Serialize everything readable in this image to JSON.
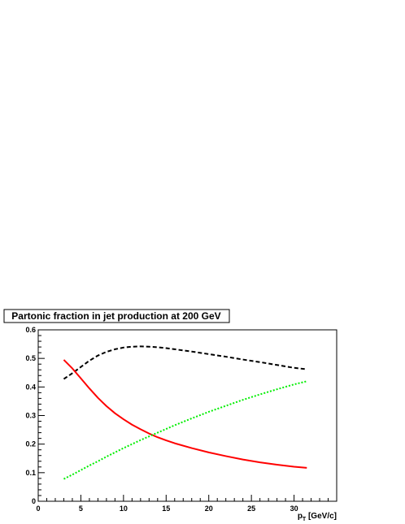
{
  "chart_data": {
    "type": "line",
    "title": "Partonic fraction in jet production at 200 GeV",
    "xlabel": "p",
    "xlabel_sub": "T",
    "xlabel_unit": " [GeV/c]",
    "ylabel": "",
    "xlim": [
      0,
      35
    ],
    "ylim": [
      0,
      0.6
    ],
    "x_major_ticks": [
      0,
      5,
      10,
      15,
      20,
      25,
      30
    ],
    "y_major_ticks": [
      0,
      0.1,
      0.2,
      0.3,
      0.4,
      0.5,
      0.6
    ],
    "x_tick_labels": [
      "0",
      "5",
      "10",
      "15",
      "20",
      "25",
      "30"
    ],
    "y_tick_labels": [
      "0",
      "0.1",
      "0.2",
      "0.3",
      "0.4",
      "0.5",
      "0.6"
    ],
    "grid": false,
    "series": [
      {
        "color": "#000000",
        "dash": "dashed",
        "x": [
          3,
          4,
          5,
          6,
          7,
          8,
          9,
          10,
          11,
          12,
          13,
          14,
          15,
          16,
          18,
          20,
          22,
          24,
          26,
          28,
          30,
          31.5
        ],
        "y": [
          0.428,
          0.448,
          0.47,
          0.492,
          0.51,
          0.523,
          0.532,
          0.538,
          0.541,
          0.542,
          0.541,
          0.539,
          0.536,
          0.532,
          0.524,
          0.515,
          0.506,
          0.496,
          0.487,
          0.477,
          0.467,
          0.462
        ]
      },
      {
        "color": "#ff0000",
        "dash": "solid",
        "x": [
          3,
          4,
          5,
          6,
          7,
          8,
          9,
          10,
          11,
          12,
          13,
          14,
          15,
          16,
          18,
          20,
          22,
          24,
          26,
          28,
          30,
          31.5
        ],
        "y": [
          0.495,
          0.465,
          0.43,
          0.395,
          0.362,
          0.333,
          0.308,
          0.287,
          0.268,
          0.252,
          0.237,
          0.224,
          0.213,
          0.203,
          0.186,
          0.171,
          0.158,
          0.146,
          0.136,
          0.128,
          0.121,
          0.117
        ]
      },
      {
        "color": "#00ee00",
        "dash": "dotted",
        "x": [
          3,
          4,
          5,
          6,
          7,
          8,
          9,
          10,
          11,
          12,
          13,
          14,
          15,
          16,
          18,
          20,
          22,
          24,
          26,
          28,
          30,
          31.5
        ],
        "y": [
          0.078,
          0.093,
          0.109,
          0.125,
          0.14,
          0.156,
          0.171,
          0.186,
          0.2,
          0.214,
          0.227,
          0.24,
          0.253,
          0.266,
          0.29,
          0.313,
          0.334,
          0.355,
          0.374,
          0.392,
          0.409,
          0.42
        ]
      }
    ]
  }
}
